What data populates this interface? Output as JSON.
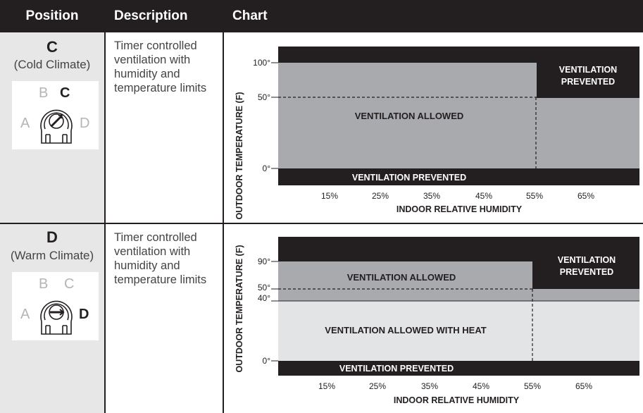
{
  "header": {
    "position": "Position",
    "description": "Description",
    "chart": "Chart"
  },
  "rows": [
    {
      "letter": "C",
      "climate": "(Cold Climate)",
      "dial_labels": {
        "a": "A",
        "b": "B",
        "c": "C",
        "d": "D"
      },
      "dial_active": "C",
      "description": "Timer controlled ventilation with humidity and temperature limits",
      "chart": {
        "ylabel": "OUTDOOR TEMPERATURE (F)",
        "xlabel": "INDOOR RELATIVE HUMIDITY",
        "y_ticks": [
          "100°",
          "50°",
          "0°"
        ],
        "x_ticks": [
          "15%",
          "25%",
          "35%",
          "45%",
          "55%",
          "65%"
        ],
        "regions": {
          "allowed": "VENTILATION ALLOWED",
          "prevented_right_line1": "VENTILATION",
          "prevented_right_line2": "PREVENTED",
          "prevented_bottom": "VENTILATION PREVENTED"
        }
      }
    },
    {
      "letter": "D",
      "climate": "(Warm Climate)",
      "dial_labels": {
        "a": "A",
        "b": "B",
        "c": "C",
        "d": "D"
      },
      "dial_active": "D",
      "description": "Timer controlled ventilation with humidity and temperature limits",
      "chart": {
        "ylabel": "OUTDOOR TEMPERATURE (F)",
        "xlabel": "INDOOR RELATIVE HUMIDITY",
        "y_ticks": [
          "90°",
          "50°",
          "40°",
          "0°"
        ],
        "x_ticks": [
          "15%",
          "25%",
          "35%",
          "45%",
          "55%",
          "65%"
        ],
        "regions": {
          "allowed": "VENTILATION ALLOWED",
          "allowed_heat": "VENTILATION ALLOWED WITH HEAT",
          "prevented_right_line1": "VENTILATION",
          "prevented_right_line2": "PREVENTED",
          "prevented_bottom": "VENTILATION PREVENTED"
        }
      }
    }
  ],
  "colors": {
    "dark": "#231f20",
    "mid_gray": "#a9aaad",
    "light_gray": "#e3e4e5",
    "position_bg": "#e7e7e7"
  }
}
